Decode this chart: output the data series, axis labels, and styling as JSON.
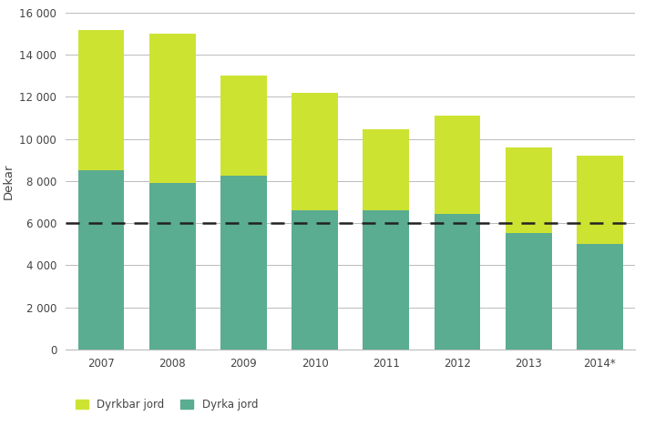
{
  "years": [
    "2007",
    "2008",
    "2009",
    "2010",
    "2011",
    "2012",
    "2013",
    "2014*"
  ],
  "dyrka_jord": [
    8500,
    7900,
    8250,
    6600,
    6600,
    6450,
    5550,
    5000
  ],
  "dyrkbar_jord": [
    6700,
    7100,
    4750,
    5600,
    3850,
    4650,
    4050,
    4200
  ],
  "dashed_line_y": 6000,
  "ylabel": "Dekar",
  "ylim": [
    0,
    16000
  ],
  "yticks": [
    0,
    2000,
    4000,
    6000,
    8000,
    10000,
    12000,
    14000,
    16000
  ],
  "ytick_labels": [
    "0",
    "2 000",
    "4 000",
    "6 000",
    "8 000",
    "10 000",
    "12 000",
    "14 000",
    "16 000"
  ],
  "color_dyrka": "#5aad90",
  "color_dyrkbar": "#cde332",
  "legend_dyrkbar": "Dyrkbar jord",
  "legend_dyrka": "Dyrka jord",
  "bar_width": 0.65,
  "background_color": "#ffffff",
  "grid_color": "#bbbbbb",
  "dashed_color": "#222222"
}
